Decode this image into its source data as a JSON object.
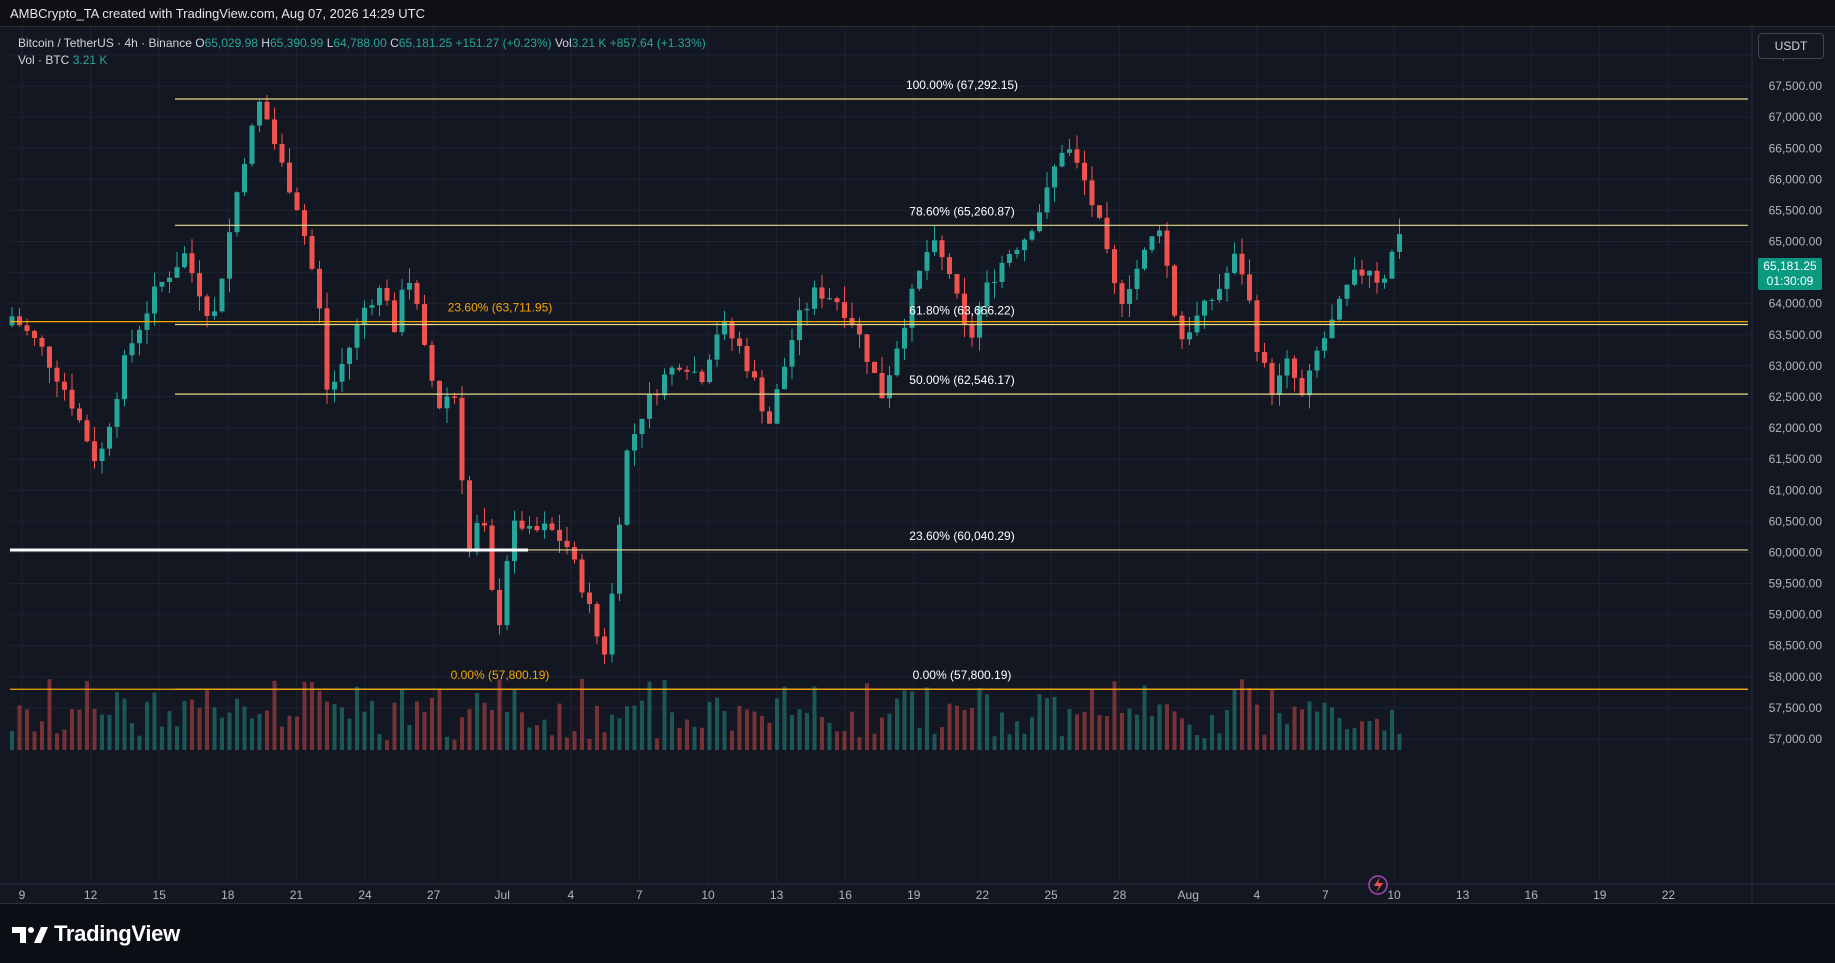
{
  "header": {
    "title": "AMBCrypto_TA created with TradingView.com, Aug 07, 2026 14:29 UTC"
  },
  "legend": {
    "symbol": "Bitcoin / TetherUS · 4h · Binance",
    "o_label": "O",
    "o_value": "65,029.98",
    "h_label": "H",
    "h_value": "65,390.99",
    "l_label": "L",
    "l_value": "64,788.00",
    "c_label": "C",
    "c_value": "65,181.25",
    "change": "+151.27 (+0.23%)",
    "vol_label": "Vol",
    "vol_value": "3.21 K",
    "vol_change": "+857.64 (+1.33%)",
    "vol_series": "Vol · BTC",
    "vol_series_value": "3.21 K"
  },
  "currency": "USDT",
  "price_badge": {
    "price": "65,181.25",
    "countdown": "01:30:09"
  },
  "brand": "TradingView",
  "colors": {
    "background": "#131722",
    "up": "#26a69a",
    "down": "#ef5350",
    "fib_white": "#e0e3eb",
    "fib_orange": "#f7a600",
    "fib_yellow": "#e8d98a",
    "grid": "#1f2330"
  },
  "chart_data": {
    "type": "candlestick",
    "symbol": "BTCUSDT",
    "interval": "4h",
    "ylim": [
      56800,
      68200
    ],
    "y_ticks": [
      "68,000.00",
      "67,500.00",
      "67,000.00",
      "66,500.00",
      "66,000.00",
      "65,500.00",
      "65,000.00",
      "64,500.00",
      "64,000.00",
      "63,500.00",
      "63,000.00",
      "62,500.00",
      "62,000.00",
      "61,500.00",
      "61,000.00",
      "60,500.00",
      "60,000.00",
      "59,500.00",
      "59,000.00",
      "58,500.00",
      "58,000.00",
      "57,500.00",
      "57,000.00"
    ],
    "y_tick_values": [
      68000,
      67500,
      67000,
      66500,
      66000,
      65500,
      65000,
      64500,
      64000,
      63500,
      63000,
      62500,
      62000,
      61500,
      61000,
      60500,
      60000,
      59500,
      59000,
      58500,
      58000,
      57500,
      57000
    ],
    "x_ticks": [
      "9",
      "12",
      "15",
      "18",
      "21",
      "24",
      "27",
      "Jul",
      "4",
      "7",
      "10",
      "13",
      "16",
      "19",
      "22",
      "25",
      "28",
      "Aug",
      "4",
      "7",
      "10",
      "13",
      "16",
      "19",
      "22"
    ],
    "fib_levels": [
      {
        "label": "100.00% (67,292.15)",
        "price": 67292.15,
        "color": "white"
      },
      {
        "label": "78.60% (65,260.87)",
        "price": 65260.87,
        "color": "white"
      },
      {
        "label": "61.80% (63,666.22)",
        "price": 63666.22,
        "color": "white"
      },
      {
        "label": "50.00% (62,546.17)",
        "price": 62546.17,
        "color": "white"
      },
      {
        "label": "23.60% (60,040.29)",
        "price": 60040.29,
        "color": "white"
      },
      {
        "label": "0.00% (57,800.19)",
        "price": 57800.19,
        "color": "white"
      },
      {
        "label": "23.60% (63,711.95)",
        "price": 63711.95,
        "color": "orange"
      },
      {
        "label": "0.00% (57,800.19)",
        "price": 57800.19,
        "color": "orange"
      }
    ],
    "close_path": [
      [
        0,
        63800
      ],
      [
        3,
        63300
      ],
      [
        6,
        62500
      ],
      [
        9,
        61400
      ],
      [
        12,
        63200
      ],
      [
        15,
        64200
      ],
      [
        18,
        64800
      ],
      [
        21,
        63700
      ],
      [
        24,
        66200
      ],
      [
        26,
        67290
      ],
      [
        28,
        66300
      ],
      [
        30,
        65500
      ],
      [
        32,
        64100
      ],
      [
        33,
        62500
      ],
      [
        35,
        63200
      ],
      [
        37,
        64000
      ],
      [
        39,
        64300
      ],
      [
        40,
        63400
      ],
      [
        41,
        64600
      ],
      [
        42,
        64200
      ],
      [
        43,
        63300
      ],
      [
        44,
        62700
      ],
      [
        45,
        62200
      ],
      [
        46,
        62900
      ],
      [
        47,
        61300
      ],
      [
        48,
        59700
      ],
      [
        49,
        60900
      ],
      [
        50,
        59400
      ],
      [
        51,
        58900
      ],
      [
        52,
        60300
      ],
      [
        53,
        60500
      ],
      [
        54,
        60300
      ],
      [
        56,
        60400
      ],
      [
        58,
        60100
      ],
      [
        60,
        59300
      ],
      [
        61,
        58700
      ],
      [
        62,
        58400
      ],
      [
        63,
        59700
      ],
      [
        64,
        61500
      ],
      [
        66,
        62300
      ],
      [
        68,
        62800
      ],
      [
        70,
        63100
      ],
      [
        72,
        62800
      ],
      [
        74,
        63700
      ],
      [
        76,
        63300
      ],
      [
        78,
        62600
      ],
      [
        79,
        62000
      ],
      [
        80,
        62600
      ],
      [
        82,
        63700
      ],
      [
        84,
        64200
      ],
      [
        86,
        64100
      ],
      [
        88,
        63700
      ],
      [
        90,
        62900
      ],
      [
        91,
        62500
      ],
      [
        92,
        63100
      ],
      [
        94,
        64100
      ],
      [
        96,
        65000
      ],
      [
        98,
        64500
      ],
      [
        99,
        63900
      ],
      [
        100,
        63300
      ],
      [
        101,
        63900
      ],
      [
        102,
        64300
      ],
      [
        104,
        64800
      ],
      [
        106,
        65100
      ],
      [
        108,
        65700
      ],
      [
        109,
        66200
      ],
      [
        110,
        66600
      ],
      [
        112,
        66000
      ],
      [
        114,
        65100
      ],
      [
        115,
        64300
      ],
      [
        116,
        64100
      ],
      [
        118,
        64700
      ],
      [
        120,
        65300
      ],
      [
        121,
        64300
      ],
      [
        122,
        63400
      ],
      [
        124,
        63800
      ],
      [
        126,
        64200
      ],
      [
        128,
        64800
      ],
      [
        129,
        64300
      ],
      [
        130,
        63400
      ],
      [
        131,
        62900
      ],
      [
        132,
        62500
      ],
      [
        133,
        63100
      ],
      [
        134,
        62800
      ],
      [
        135,
        62400
      ],
      [
        136,
        63100
      ],
      [
        138,
        63700
      ],
      [
        140,
        64400
      ],
      [
        142,
        64600
      ],
      [
        143,
        64300
      ],
      [
        144,
        64700
      ],
      [
        145,
        65181
      ]
    ],
    "volume_ylim": [
      0,
      120
    ]
  }
}
